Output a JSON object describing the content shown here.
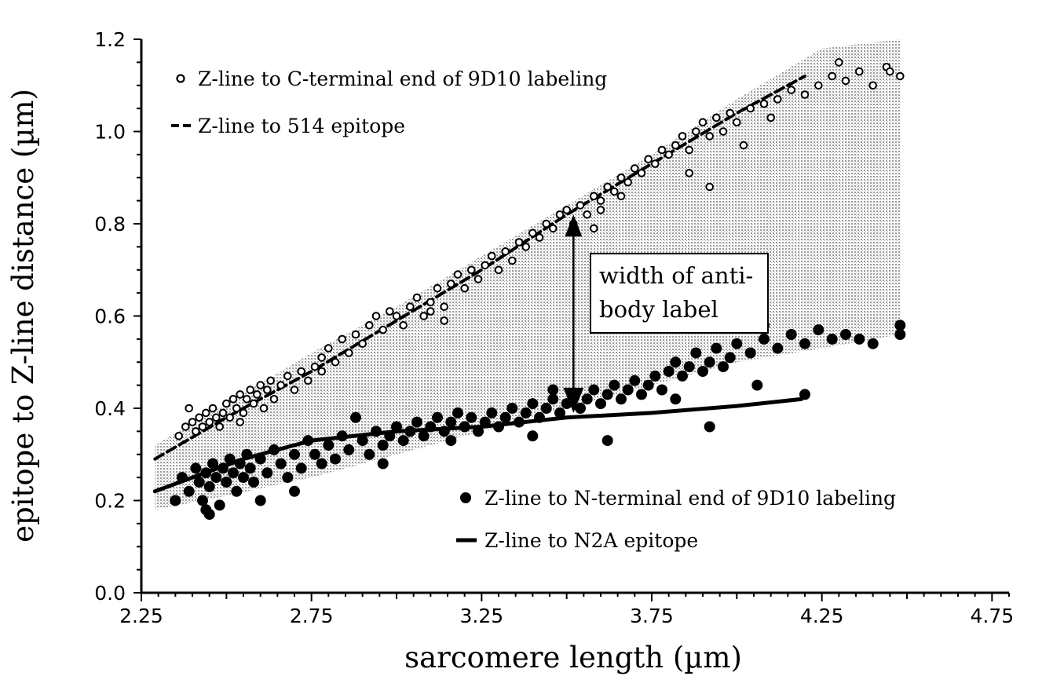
{
  "chart_data": {
    "type": "scatter",
    "xlabel": "sarcomere length (µm)",
    "ylabel": "epitope to Z-line distance (µm)",
    "xlim": [
      2.25,
      4.8
    ],
    "ylim": [
      0.0,
      1.2
    ],
    "x_ticks": [
      "2.25",
      "2.75",
      "3.25",
      "3.75",
      "4.25",
      "4.75"
    ],
    "y_ticks": [
      "0.0",
      "0.2",
      "0.4",
      "0.6",
      "0.8",
      "1.0",
      "1.2"
    ],
    "legend": [
      {
        "label": "Z-line to C-terminal end of 9D10 labeling",
        "marker": "open-circle"
      },
      {
        "label": "Z-line to 514 epitope",
        "marker": "dashed-line"
      },
      {
        "label": "Z-line to N-terminal end of 9D10 labeling",
        "marker": "filled-circle"
      },
      {
        "label": "Z-line to N2A epitope",
        "marker": "solid-line"
      }
    ],
    "annotation": {
      "line1": "width of anti-",
      "line2": "body label",
      "x": 3.52,
      "y_top": 0.82,
      "y_bottom": 0.39
    },
    "series": [
      {
        "name": "Z-line to C-terminal end of 9D10 labeling",
        "style": "open-circle",
        "points": [
          [
            2.36,
            0.34
          ],
          [
            2.38,
            0.36
          ],
          [
            2.39,
            0.4
          ],
          [
            2.4,
            0.37
          ],
          [
            2.41,
            0.35
          ],
          [
            2.42,
            0.38
          ],
          [
            2.43,
            0.36
          ],
          [
            2.44,
            0.39
          ],
          [
            2.45,
            0.37
          ],
          [
            2.46,
            0.4
          ],
          [
            2.47,
            0.38
          ],
          [
            2.48,
            0.36
          ],
          [
            2.49,
            0.39
          ],
          [
            2.5,
            0.41
          ],
          [
            2.51,
            0.38
          ],
          [
            2.52,
            0.42
          ],
          [
            2.53,
            0.4
          ],
          [
            2.54,
            0.43
          ],
          [
            2.55,
            0.39
          ],
          [
            2.56,
            0.42
          ],
          [
            2.57,
            0.44
          ],
          [
            2.58,
            0.41
          ],
          [
            2.59,
            0.43
          ],
          [
            2.6,
            0.45
          ],
          [
            2.61,
            0.4
          ],
          [
            2.62,
            0.44
          ],
          [
            2.63,
            0.46
          ],
          [
            2.64,
            0.42
          ],
          [
            2.66,
            0.45
          ],
          [
            2.68,
            0.47
          ],
          [
            2.7,
            0.44
          ],
          [
            2.72,
            0.48
          ],
          [
            2.74,
            0.46
          ],
          [
            2.76,
            0.49
          ],
          [
            2.78,
            0.51
          ],
          [
            2.8,
            0.53
          ],
          [
            2.82,
            0.5
          ],
          [
            2.84,
            0.55
          ],
          [
            2.86,
            0.52
          ],
          [
            2.88,
            0.56
          ],
          [
            2.9,
            0.54
          ],
          [
            2.92,
            0.58
          ],
          [
            2.94,
            0.6
          ],
          [
            2.96,
            0.57
          ],
          [
            2.98,
            0.61
          ],
          [
            3.0,
            0.6
          ],
          [
            3.02,
            0.58
          ],
          [
            3.04,
            0.62
          ],
          [
            3.06,
            0.64
          ],
          [
            3.08,
            0.6
          ],
          [
            3.1,
            0.63
          ],
          [
            3.12,
            0.66
          ],
          [
            3.14,
            0.62
          ],
          [
            3.16,
            0.67
          ],
          [
            3.18,
            0.69
          ],
          [
            3.2,
            0.66
          ],
          [
            3.22,
            0.7
          ],
          [
            3.24,
            0.68
          ],
          [
            3.26,
            0.71
          ],
          [
            3.28,
            0.73
          ],
          [
            3.3,
            0.7
          ],
          [
            3.32,
            0.74
          ],
          [
            3.34,
            0.72
          ],
          [
            3.36,
            0.76
          ],
          [
            3.38,
            0.75
          ],
          [
            3.4,
            0.78
          ],
          [
            3.42,
            0.77
          ],
          [
            3.44,
            0.8
          ],
          [
            3.46,
            0.79
          ],
          [
            3.48,
            0.82
          ],
          [
            3.5,
            0.83
          ],
          [
            3.52,
            0.8
          ],
          [
            3.54,
            0.84
          ],
          [
            3.56,
            0.82
          ],
          [
            3.58,
            0.86
          ],
          [
            3.6,
            0.85
          ],
          [
            3.62,
            0.88
          ],
          [
            3.64,
            0.87
          ],
          [
            3.66,
            0.9
          ],
          [
            3.68,
            0.89
          ],
          [
            3.7,
            0.92
          ],
          [
            3.72,
            0.91
          ],
          [
            3.74,
            0.94
          ],
          [
            3.76,
            0.93
          ],
          [
            3.78,
            0.96
          ],
          [
            3.8,
            0.95
          ],
          [
            3.82,
            0.97
          ],
          [
            3.84,
            0.99
          ],
          [
            3.86,
            0.96
          ],
          [
            3.88,
            1.0
          ],
          [
            3.9,
            1.02
          ],
          [
            3.92,
            0.99
          ],
          [
            3.94,
            1.03
          ],
          [
            3.96,
            1.0
          ],
          [
            3.98,
            1.04
          ],
          [
            4.0,
            1.02
          ],
          [
            4.04,
            1.05
          ],
          [
            4.08,
            1.06
          ],
          [
            4.12,
            1.07
          ],
          [
            4.16,
            1.09
          ],
          [
            4.2,
            1.08
          ],
          [
            4.24,
            1.1
          ],
          [
            4.28,
            1.12
          ],
          [
            4.32,
            1.11
          ],
          [
            4.36,
            1.13
          ],
          [
            4.4,
            1.1
          ],
          [
            4.44,
            1.14
          ],
          [
            4.48,
            1.12
          ],
          [
            3.58,
            0.79
          ],
          [
            3.6,
            0.83
          ],
          [
            3.66,
            0.86
          ],
          [
            3.86,
            0.91
          ],
          [
            3.92,
            0.88
          ],
          [
            4.02,
            0.97
          ],
          [
            4.1,
            1.03
          ],
          [
            4.3,
            1.15
          ],
          [
            4.45,
            1.13
          ],
          [
            3.14,
            0.59
          ],
          [
            3.1,
            0.61
          ],
          [
            2.78,
            0.48
          ],
          [
            2.54,
            0.37
          ]
        ]
      },
      {
        "name": "Z-line to N-terminal end of 9D10 labeling",
        "style": "filled-circle",
        "points": [
          [
            2.35,
            0.2
          ],
          [
            2.37,
            0.25
          ],
          [
            2.39,
            0.22
          ],
          [
            2.41,
            0.27
          ],
          [
            2.42,
            0.24
          ],
          [
            2.43,
            0.2
          ],
          [
            2.44,
            0.26
          ],
          [
            2.45,
            0.23
          ],
          [
            2.46,
            0.28
          ],
          [
            2.47,
            0.25
          ],
          [
            2.48,
            0.19
          ],
          [
            2.49,
            0.27
          ],
          [
            2.5,
            0.24
          ],
          [
            2.51,
            0.29
          ],
          [
            2.52,
            0.26
          ],
          [
            2.53,
            0.22
          ],
          [
            2.54,
            0.28
          ],
          [
            2.55,
            0.25
          ],
          [
            2.56,
            0.3
          ],
          [
            2.57,
            0.27
          ],
          [
            2.58,
            0.24
          ],
          [
            2.6,
            0.29
          ],
          [
            2.62,
            0.26
          ],
          [
            2.64,
            0.31
          ],
          [
            2.66,
            0.28
          ],
          [
            2.68,
            0.25
          ],
          [
            2.7,
            0.3
          ],
          [
            2.72,
            0.27
          ],
          [
            2.74,
            0.33
          ],
          [
            2.76,
            0.3
          ],
          [
            2.78,
            0.28
          ],
          [
            2.8,
            0.32
          ],
          [
            2.82,
            0.29
          ],
          [
            2.84,
            0.34
          ],
          [
            2.86,
            0.31
          ],
          [
            2.88,
            0.38
          ],
          [
            2.9,
            0.33
          ],
          [
            2.92,
            0.3
          ],
          [
            2.94,
            0.35
          ],
          [
            2.96,
            0.32
          ],
          [
            2.98,
            0.34
          ],
          [
            3.0,
            0.36
          ],
          [
            3.02,
            0.33
          ],
          [
            3.04,
            0.35
          ],
          [
            3.06,
            0.37
          ],
          [
            3.08,
            0.34
          ],
          [
            3.1,
            0.36
          ],
          [
            3.12,
            0.38
          ],
          [
            3.14,
            0.35
          ],
          [
            3.16,
            0.37
          ],
          [
            3.18,
            0.39
          ],
          [
            3.2,
            0.36
          ],
          [
            3.22,
            0.38
          ],
          [
            3.24,
            0.35
          ],
          [
            3.26,
            0.37
          ],
          [
            3.28,
            0.39
          ],
          [
            3.3,
            0.36
          ],
          [
            3.32,
            0.38
          ],
          [
            3.34,
            0.4
          ],
          [
            3.36,
            0.37
          ],
          [
            3.38,
            0.39
          ],
          [
            3.4,
            0.41
          ],
          [
            3.42,
            0.38
          ],
          [
            3.44,
            0.4
          ],
          [
            3.46,
            0.42
          ],
          [
            3.48,
            0.39
          ],
          [
            3.5,
            0.41
          ],
          [
            3.52,
            0.43
          ],
          [
            3.54,
            0.4
          ],
          [
            3.56,
            0.42
          ],
          [
            3.58,
            0.44
          ],
          [
            3.6,
            0.41
          ],
          [
            3.62,
            0.43
          ],
          [
            3.64,
            0.45
          ],
          [
            3.66,
            0.42
          ],
          [
            3.68,
            0.44
          ],
          [
            3.7,
            0.46
          ],
          [
            3.72,
            0.43
          ],
          [
            3.74,
            0.45
          ],
          [
            3.76,
            0.47
          ],
          [
            3.78,
            0.44
          ],
          [
            3.8,
            0.48
          ],
          [
            3.82,
            0.5
          ],
          [
            3.84,
            0.47
          ],
          [
            3.86,
            0.49
          ],
          [
            3.88,
            0.52
          ],
          [
            3.9,
            0.48
          ],
          [
            3.92,
            0.5
          ],
          [
            3.94,
            0.53
          ],
          [
            3.96,
            0.49
          ],
          [
            3.98,
            0.51
          ],
          [
            4.0,
            0.54
          ],
          [
            4.04,
            0.52
          ],
          [
            4.08,
            0.55
          ],
          [
            4.12,
            0.53
          ],
          [
            4.16,
            0.56
          ],
          [
            4.2,
            0.54
          ],
          [
            4.24,
            0.57
          ],
          [
            4.28,
            0.55
          ],
          [
            4.32,
            0.56
          ],
          [
            4.36,
            0.55
          ],
          [
            4.4,
            0.54
          ],
          [
            4.48,
            0.58
          ],
          [
            4.48,
            0.56
          ],
          [
            4.2,
            0.43
          ],
          [
            4.06,
            0.45
          ],
          [
            3.92,
            0.36
          ],
          [
            3.62,
            0.33
          ],
          [
            3.4,
            0.34
          ],
          [
            3.16,
            0.33
          ],
          [
            2.96,
            0.28
          ],
          [
            2.7,
            0.22
          ],
          [
            2.6,
            0.2
          ],
          [
            2.45,
            0.17
          ],
          [
            2.44,
            0.18
          ],
          [
            3.88,
            0.58
          ],
          [
            4.08,
            0.58
          ],
          [
            3.46,
            0.44
          ],
          [
            3.82,
            0.42
          ]
        ]
      }
    ],
    "lines": [
      {
        "name": "Z-line to 514 epitope",
        "style": "dashed",
        "points": [
          [
            2.29,
            0.29
          ],
          [
            2.5,
            0.38
          ],
          [
            2.75,
            0.48
          ],
          [
            3.0,
            0.59
          ],
          [
            3.25,
            0.7
          ],
          [
            3.5,
            0.82
          ],
          [
            3.75,
            0.93
          ],
          [
            4.0,
            1.04
          ],
          [
            4.2,
            1.12
          ]
        ]
      },
      {
        "name": "Z-line to N2A epitope",
        "style": "solid",
        "points": [
          [
            2.29,
            0.22
          ],
          [
            2.4,
            0.25
          ],
          [
            2.55,
            0.29
          ],
          [
            2.75,
            0.33
          ],
          [
            3.0,
            0.35
          ],
          [
            3.25,
            0.36
          ],
          [
            3.5,
            0.38
          ],
          [
            3.75,
            0.39
          ],
          [
            4.0,
            0.405
          ],
          [
            4.19,
            0.42
          ]
        ]
      }
    ],
    "shaded_band": {
      "upper": [
        [
          2.29,
          0.32
        ],
        [
          2.5,
          0.41
        ],
        [
          2.75,
          0.52
        ],
        [
          3.0,
          0.62
        ],
        [
          3.25,
          0.73
        ],
        [
          3.5,
          0.84
        ],
        [
          3.75,
          0.95
        ],
        [
          4.0,
          1.07
        ],
        [
          4.25,
          1.18
        ],
        [
          4.48,
          1.2
        ]
      ],
      "lower": [
        [
          2.29,
          0.18
        ],
        [
          2.5,
          0.21
        ],
        [
          2.75,
          0.25
        ],
        [
          3.0,
          0.3
        ],
        [
          3.25,
          0.35
        ],
        [
          3.5,
          0.4
        ],
        [
          3.75,
          0.45
        ],
        [
          4.0,
          0.5
        ],
        [
          4.25,
          0.53
        ],
        [
          4.48,
          0.56
        ]
      ]
    }
  }
}
